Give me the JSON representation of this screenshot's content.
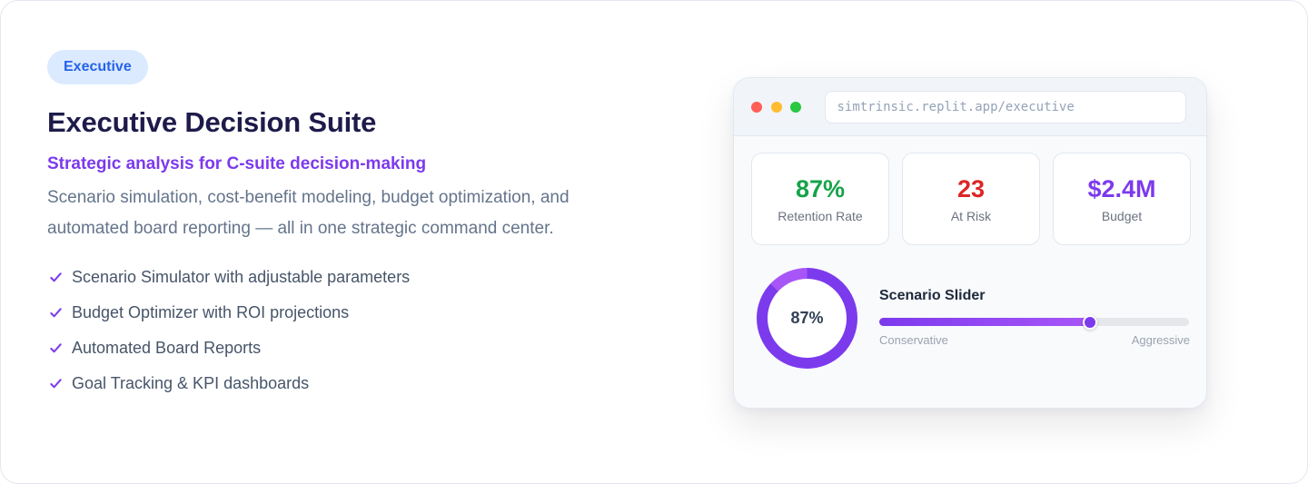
{
  "hero": {
    "badge": "Executive",
    "title": "Executive Decision Suite",
    "subtitle": "Strategic analysis for C-suite decision-making",
    "description": "Scenario simulation, cost-benefit modeling, budget optimization, and automated board reporting — all in one strategic command center.",
    "features": [
      {
        "icon": "check-icon",
        "label": "Scenario Simulator with adjustable parameters"
      },
      {
        "icon": "check-icon",
        "label": "Budget Optimizer with ROI projections"
      },
      {
        "icon": "check-icon",
        "label": "Automated Board Reports"
      },
      {
        "icon": "check-icon",
        "label": "Goal Tracking & KPI dashboards"
      }
    ]
  },
  "browser": {
    "url": "simtrinsic.replit.app/executive",
    "window_dots": [
      "close",
      "minimize",
      "maximize"
    ],
    "stats": [
      {
        "value": "87%",
        "label": "Retention Rate",
        "color": "#16a34a"
      },
      {
        "value": "23",
        "label": "At Risk",
        "color": "#dc2626"
      },
      {
        "value": "$2.4M",
        "label": "Budget",
        "color": "#7c3aed"
      }
    ],
    "donut": {
      "value": "87%",
      "percent": 87,
      "color": "#7c3aed",
      "remainder_color": "#a855f7"
    },
    "slider": {
      "title": "Scenario Slider",
      "min_label": "Conservative",
      "max_label": "Aggressive",
      "position_percent": 68
    }
  },
  "colors": {
    "badge_bg": "#dbeafe",
    "badge_text": "#2563eb",
    "title": "#1e1b4b",
    "accent": "#7c3aed",
    "body_text": "#64748b"
  }
}
